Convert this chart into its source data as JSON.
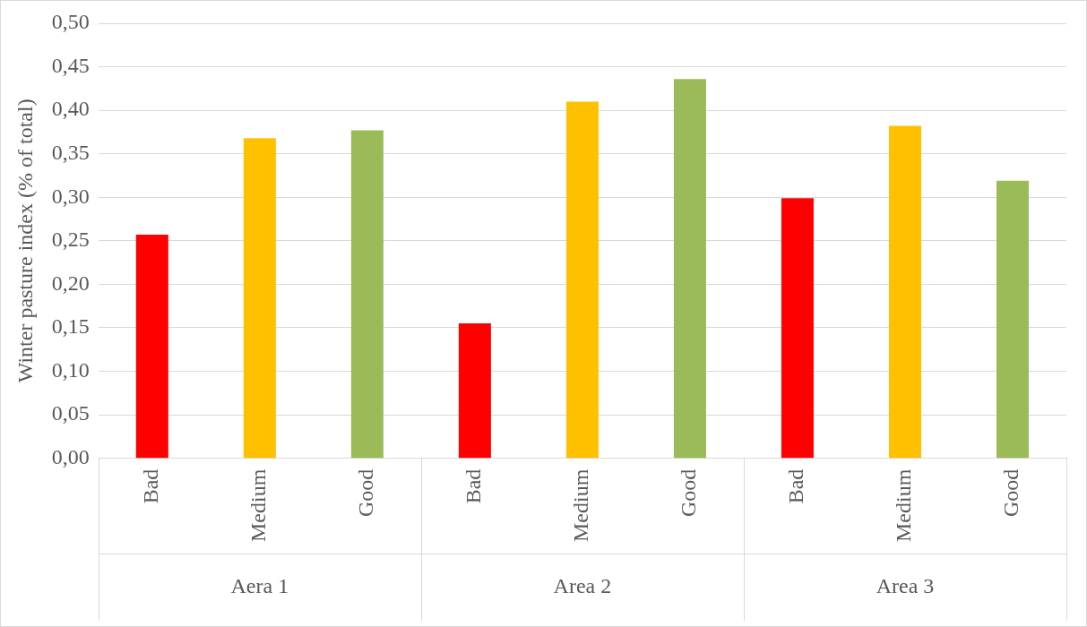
{
  "chart_data": {
    "type": "bar",
    "ylabel": "Winter pasture index (% of total)",
    "categories": [
      "Bad",
      "Medium",
      "Good",
      "Bad",
      "Medium",
      "Good",
      "Bad",
      "Medium",
      "Good"
    ],
    "values": [
      0.257,
      0.368,
      0.377,
      0.155,
      0.41,
      0.436,
      0.299,
      0.382,
      0.319
    ],
    "colors": [
      "#ff0000",
      "#ffc000",
      "#9bbb59",
      "#ff0000",
      "#ffc000",
      "#9bbb59",
      "#ff0000",
      "#ffc000",
      "#9bbb59"
    ],
    "ylim": [
      0,
      0.5
    ],
    "yticks": [
      {
        "value": 0,
        "label": "0,00"
      },
      {
        "value": 0.05,
        "label": "0,05"
      },
      {
        "value": 0.1,
        "label": "0,10"
      },
      {
        "value": 0.15,
        "label": "0,15"
      },
      {
        "value": 0.2,
        "label": "0,20"
      },
      {
        "value": 0.25,
        "label": "0,25"
      },
      {
        "value": 0.3,
        "label": "0,30"
      },
      {
        "value": 0.35,
        "label": "0,35"
      },
      {
        "value": 0.4,
        "label": "0,40"
      },
      {
        "value": 0.45,
        "label": "0,45"
      },
      {
        "value": 0.5,
        "label": "0,50"
      }
    ],
    "grid": "y",
    "legend": false,
    "annotations": [
      "Aera 1",
      "Area 2",
      "Area 3"
    ]
  }
}
